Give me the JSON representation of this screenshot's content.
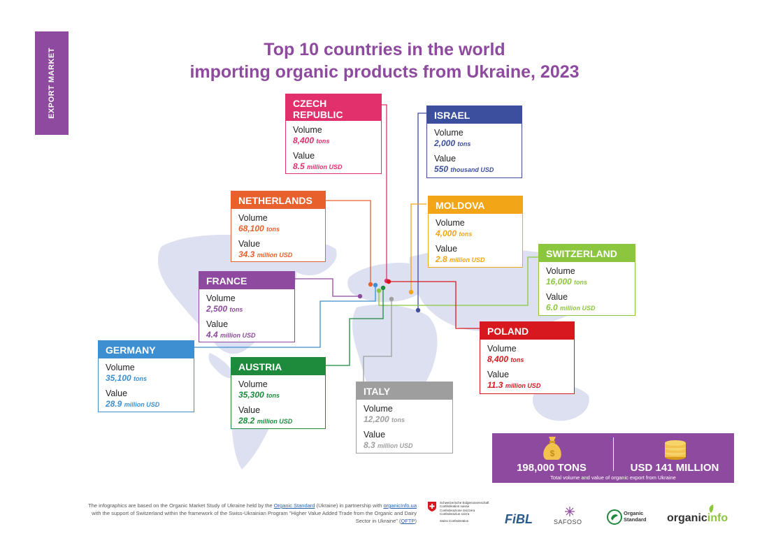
{
  "side_tab": "EXPORT MARKET",
  "title_line1": "Top 10 countries in the world",
  "title_line2": "importing organic products from Ukraine, 2023",
  "labels": {
    "volume": "Volume",
    "value": "Value"
  },
  "countries": [
    {
      "key": "czech",
      "name_line1": "CZECH",
      "name_line2": "REPUBLIC",
      "color": "#e1306c",
      "volume": "8,400",
      "volume_unit": "tons",
      "value": "8.5",
      "value_unit": "million USD"
    },
    {
      "key": "israel",
      "name_line1": "ISRAEL",
      "name_line2": "",
      "color": "#3c4e9e",
      "volume": "2,000",
      "volume_unit": "tons",
      "value": "550",
      "value_unit": "thousand USD"
    },
    {
      "key": "netherlands",
      "name_line1": "NETHERLANDS",
      "name_line2": "",
      "color": "#e8602c",
      "volume": "68,100",
      "volume_unit": "tons",
      "value": "34.3",
      "value_unit": "million USD"
    },
    {
      "key": "moldova",
      "name_line1": "MOLDOVA",
      "name_line2": "",
      "color": "#f2a516",
      "volume": "4,000",
      "volume_unit": "tons",
      "value": "2.8",
      "value_unit": "million USD"
    },
    {
      "key": "switzerland",
      "name_line1": "SWITZERLAND",
      "name_line2": "",
      "color": "#8cc63f",
      "volume": "16,000",
      "volume_unit": "tons",
      "value": "6.0",
      "value_unit": "million USD"
    },
    {
      "key": "france",
      "name_line1": "FRANCE",
      "name_line2": "",
      "color": "#8e4a9e",
      "volume": "2,500",
      "volume_unit": "tons",
      "value": "4.4",
      "value_unit": "million USD"
    },
    {
      "key": "germany",
      "name_line1": "GERMANY",
      "name_line2": "",
      "color": "#3d8fd1",
      "volume": "35,100",
      "volume_unit": "tons",
      "value": "28.9",
      "value_unit": "million USD"
    },
    {
      "key": "poland",
      "name_line1": "POLAND",
      "name_line2": "",
      "color": "#d7191f",
      "volume": "8,400",
      "volume_unit": "tons",
      "value": "11.3",
      "value_unit": "million USD"
    },
    {
      "key": "austria",
      "name_line1": "AUSTRIA",
      "name_line2": "",
      "color": "#1d8a3c",
      "volume": "35,300",
      "volume_unit": "tons",
      "value": "28.2",
      "value_unit": "million USD"
    },
    {
      "key": "italy",
      "name_line1": "ITALY",
      "name_line2": "",
      "color": "#9e9e9e",
      "volume": "12,200",
      "volume_unit": "tons",
      "value": "8.3",
      "value_unit": "million USD"
    }
  ],
  "totals": {
    "tons": "198,000 TONS",
    "usd": "USD 141 MILLION",
    "caption": "Total volume and value of organic export from Ukraine"
  },
  "footer": {
    "part1": "The infographics are based on the Organic Market Study of Ukraine held by the ",
    "link1": "Organic Standard",
    "part2": " (Ukraine) in partnership with ",
    "link2": "organicInfo.ua",
    "part3": " with the support of Switzerland within the framework of the Swiss-Ukrainian Program \"Higher Value Added Trade from the Organic and Dairy Sector in Ukraine\" (",
    "link3": "QFTP",
    "part4": ")"
  },
  "logos": {
    "swiss_lines": [
      "Schweizerische Eidgenossenschaft",
      "Confédération suisse",
      "Confederazione Svizzera",
      "Confederaziun svizra"
    ],
    "swiss_sub": "Swiss Confederation",
    "fibl": "FiBL",
    "safoso": "SAFOSO",
    "os_line1": "Organic",
    "os_line2": "Standard",
    "organic": "organic",
    "info": "info"
  }
}
